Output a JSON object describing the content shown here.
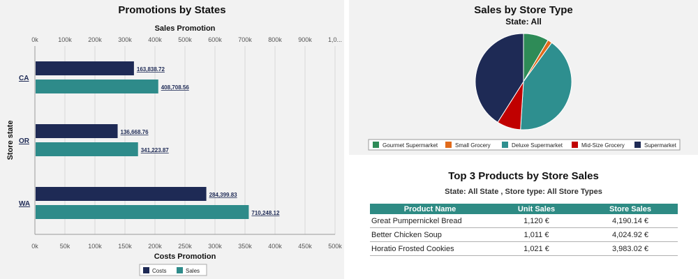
{
  "colors": {
    "costs": "#1e2a55",
    "sales": "#2e8b8a",
    "gourmet": "#2e8b57",
    "small": "#e06a1b",
    "deluxe": "#2e8f8f",
    "midsize": "#c00000",
    "supermarket": "#1e2a55",
    "header": "#2e8b84"
  },
  "chart_data": [
    {
      "type": "bar",
      "orientation": "horizontal",
      "title": "Promotions by States",
      "ylabel": "Store state",
      "categories": [
        "CA",
        "OR",
        "WA"
      ],
      "top_axis": {
        "label": "Sales Promotion",
        "ticks": [
          "0k",
          "100k",
          "200k",
          "300k",
          "400k",
          "500k",
          "600k",
          "700k",
          "800k",
          "900k",
          "1,0..."
        ],
        "range": [
          0,
          1000000
        ]
      },
      "bottom_axis": {
        "label": "Costs Promotion",
        "ticks": [
          "0k",
          "50k",
          "100k",
          "150k",
          "200k",
          "250k",
          "300k",
          "350k",
          "400k",
          "450k",
          "500k"
        ],
        "range": [
          0,
          500000
        ]
      },
      "series": [
        {
          "name": "Costs",
          "axis": "bottom",
          "values": [
            163838.72,
            136668.76,
            284399.83
          ],
          "labels": [
            "163,838.72",
            "136,668.76",
            "284,399.83"
          ]
        },
        {
          "name": "Sales",
          "axis": "top",
          "values": [
            408708.56,
            341223.87,
            710248.12
          ],
          "labels": [
            "408,708.56",
            "341,223.87",
            "710,248.12"
          ]
        }
      ],
      "legend": "bottom"
    },
    {
      "type": "pie",
      "title": "Sales by Store Type",
      "subtitle": "State: All",
      "categories": [
        "Gourmet Supermarket",
        "Small Grocery",
        "Deluxe Supermarket",
        "Mid-Size Grocery",
        "Supermarket"
      ],
      "values": [
        8.5,
        1.5,
        41,
        8,
        41
      ],
      "legend": "bottom"
    },
    {
      "type": "table",
      "title": "Top 3 Products by Store Sales",
      "subtitle": "State: All State ,     Store type: All Store Types",
      "columns": [
        "Product Name",
        "Unit Sales",
        "Store Sales"
      ],
      "rows": [
        [
          "Great Pumpernickel Bread",
          "1,120 €",
          "4,190.14 €"
        ],
        [
          "Better Chicken Soup",
          "1,011 €",
          "4,024.92 €"
        ],
        [
          "Horatio Frosted Cookies",
          "1,021 €",
          "3,983.02 €"
        ]
      ]
    }
  ]
}
